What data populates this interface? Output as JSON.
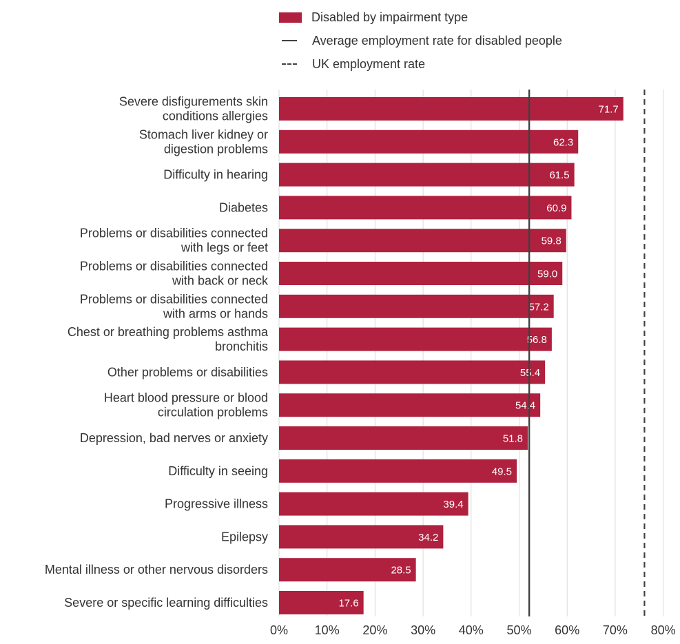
{
  "legend": {
    "bars_label": "Disabled by impairment type",
    "average_label": "Average employment rate for disabled people",
    "uk_label": "UK employment rate"
  },
  "chart_data": {
    "type": "bar",
    "orientation": "horizontal",
    "categories": [
      "Severe disfigurements skin conditions allergies",
      "Stomach liver kidney or digestion problems",
      "Difficulty in hearing",
      "Diabetes",
      "Problems or disabilities connected with legs or feet",
      "Problems or disabilities connected with back or neck",
      "Problems or disabilities connected with arms or hands",
      "Chest or breathing problems asthma bronchitis",
      "Other problems or disabilities",
      "Heart blood pressure or blood circulation problems",
      "Depression, bad nerves or anxiety",
      "Difficulty in seeing",
      "Progressive illness",
      "Epilepsy",
      "Mental illness or other nervous disorders",
      "Severe or specific learning difficulties"
    ],
    "category_label_lines": [
      [
        "Severe disfigurements skin",
        "conditions allergies"
      ],
      [
        "Stomach liver kidney or",
        "digestion problems"
      ],
      [
        "Difficulty in hearing"
      ],
      [
        "Diabetes"
      ],
      [
        "Problems or disabilities connected",
        "with legs or feet"
      ],
      [
        "Problems or disabilities connected",
        "with back or neck"
      ],
      [
        "Problems or disabilities connected",
        "with arms or hands"
      ],
      [
        "Chest or breathing problems asthma",
        "bronchitis"
      ],
      [
        "Other problems or disabilities"
      ],
      [
        "Heart blood pressure or blood",
        "circulation problems"
      ],
      [
        "Depression, bad nerves or anxiety"
      ],
      [
        "Difficulty in seeing"
      ],
      [
        "Progressive illness"
      ],
      [
        "Epilepsy"
      ],
      [
        "Mental illness or other nervous disorders"
      ],
      [
        "Severe or specific learning difficulties"
      ]
    ],
    "series": [
      {
        "name": "Disabled by impairment type",
        "values": [
          71.7,
          62.3,
          61.5,
          60.9,
          59.8,
          59.0,
          57.2,
          56.8,
          55.4,
          54.4,
          51.8,
          49.5,
          39.4,
          34.2,
          28.5,
          17.6
        ],
        "color": "#b0213f"
      }
    ],
    "data_labels": [
      "71.7",
      "62.3",
      "61.5",
      "60.9",
      "59.8",
      "59.0",
      "57.2",
      "56.8",
      "55.4",
      "54.4",
      "51.8",
      "49.5",
      "39.4",
      "34.2",
      "28.5",
      "17.6"
    ],
    "reference_lines": [
      {
        "name": "Average employment rate for disabled people",
        "value": 52.1,
        "style": "solid",
        "color": "#404040"
      },
      {
        "name": "UK employment rate",
        "value": 76.1,
        "style": "dashed",
        "color": "#404040"
      }
    ],
    "x_ticks": [
      0,
      10,
      20,
      30,
      40,
      50,
      60,
      70,
      80
    ],
    "x_tick_labels": [
      "0%",
      "10%",
      "20%",
      "30%",
      "40%",
      "50%",
      "60%",
      "70%",
      "80%"
    ],
    "xlim": [
      0,
      80
    ],
    "grid": "vertical",
    "legend_position": "top",
    "title": "",
    "xlabel": "",
    "ylabel": ""
  },
  "colors": {
    "bar": "#b0213f",
    "grid": "#d9d9d9",
    "text": "#333333",
    "reference": "#404040",
    "data_label": "#ffffff"
  }
}
